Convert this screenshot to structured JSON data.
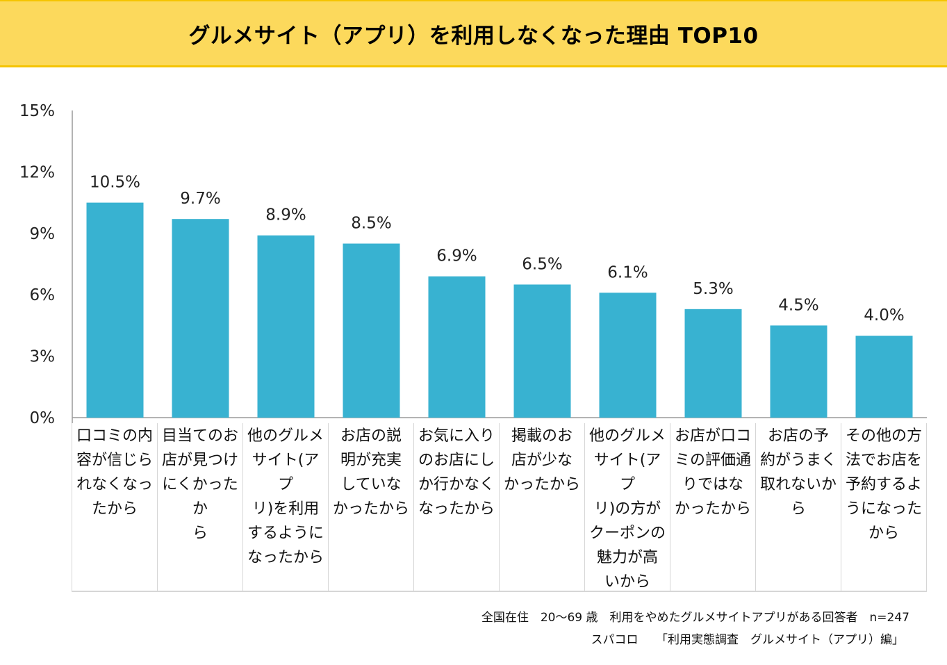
{
  "title": "グルメサイト（アプリ）を利用しなくなった理由 TOP10",
  "chart_data": {
    "type": "bar",
    "title": "グルメサイト（アプリ）を利用しなくなった理由 TOP10",
    "categories": [
      "口コミの内容が信じられなくなったから",
      "目当てのお店が見つけにくかったから",
      "他のグルメサイト(アプリ)を利用するようになったから",
      "お店の説明が充実していなかったから",
      "お気に入りのお店にしか行かなくなったから",
      "掲載のお店が少なかったから",
      "他のグルメサイト(アプリ)の方がクーポンの魅力が高いから",
      "お店が口コミの評価通りではなかったから",
      "お店の予約がうまく取れないから",
      "その他の方法でお店を予約するようになったから"
    ],
    "category_lines": [
      "口コミの内\n容が信じら\nれなくなっ\nたから",
      "目当てのお\n店が見つけ\nにくかったか\nら",
      "他のグルメ\nサイト(アプ\nリ)を利用\nするように\nなったから",
      "お店の説\n明が充実\nしていな\nかったから",
      "お気に入り\nのお店にし\nか行かなく\nなったから",
      "掲載のお\n店が少な\nかったから",
      "他のグルメ\nサイト(アプ\nリ)の方が\nクーポンの\n魅力が高\nいから",
      "お店が口コ\nミの評価通\nりではな\nかったから",
      "お店の予\n約がうまく\n取れないか\nら",
      "その他の方\n法でお店を\n予約するよ\nうになった\nから"
    ],
    "values": [
      10.5,
      9.7,
      8.9,
      8.5,
      6.9,
      6.5,
      6.1,
      5.3,
      4.5,
      4.0
    ],
    "data_labels": [
      "10.5%",
      "9.7%",
      "8.9%",
      "8.5%",
      "6.9%",
      "6.5%",
      "6.1%",
      "5.3%",
      "4.5%",
      "4.0%"
    ],
    "yticks": [
      0,
      3,
      6,
      9,
      12,
      15
    ],
    "ytick_labels": [
      "0%",
      "3%",
      "6%",
      "9%",
      "12%",
      "15%"
    ],
    "ylim": [
      0,
      15
    ],
    "unit": "%",
    "xlabel": "",
    "ylabel": "",
    "grid": false,
    "legend": "none",
    "bar_color": "#38b2d1"
  },
  "notes": {
    "line1": "全国在住　20～69 歳　利用をやめたグルメサイトアプリがある回答者　n=247",
    "line2": "スパコロ　　「利用実態調査　グルメサイト（アプリ）編」"
  },
  "colors": {
    "title_bg": "#fcd95c",
    "title_border": "#f5c400",
    "bar": "#38b2d1",
    "axis": "#9a9a9a"
  }
}
